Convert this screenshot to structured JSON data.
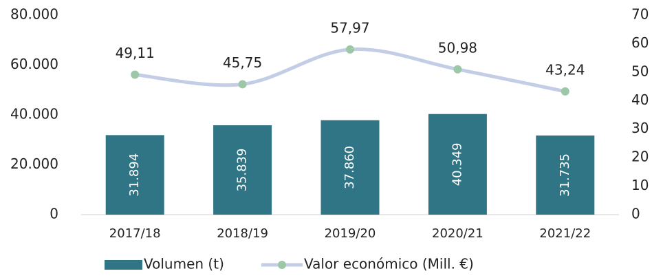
{
  "chart_data": {
    "type": "bar_line",
    "categories": [
      "2017/18",
      "2018/19",
      "2019/20",
      "2020/21",
      "2021/22"
    ],
    "series": [
      {
        "name": "Volumen (t)",
        "type": "bar",
        "color": "#2f7585",
        "values": [
          31894,
          35839,
          37860,
          40349,
          31735
        ],
        "value_labels": [
          "31.894",
          "35.839",
          "37.860",
          "40.349",
          "31.735"
        ]
      },
      {
        "name": "Valor económico (Mill. €)",
        "type": "line",
        "axis": "y2",
        "color": "#c3cde6",
        "marker_color": "#9dc8a7",
        "values": [
          49.11,
          45.75,
          57.97,
          50.98,
          43.24
        ],
        "value_labels": [
          "49,11",
          "45,75",
          "57,97",
          "50,98",
          "43,24"
        ]
      }
    ],
    "ylim": [
      0,
      80000
    ],
    "yticks": [
      0,
      {
        "value": 20000,
        "label": "20.000"
      },
      {
        "value": 40000,
        "label": "40.000"
      },
      {
        "value": 60000,
        "label": "60.000"
      },
      {
        "value": 80000,
        "label": "80.000"
      }
    ],
    "y2lim": [
      0,
      70
    ],
    "y2ticks": [
      0,
      10,
      20,
      30,
      40,
      50,
      60,
      70
    ],
    "legend": "bottom"
  }
}
